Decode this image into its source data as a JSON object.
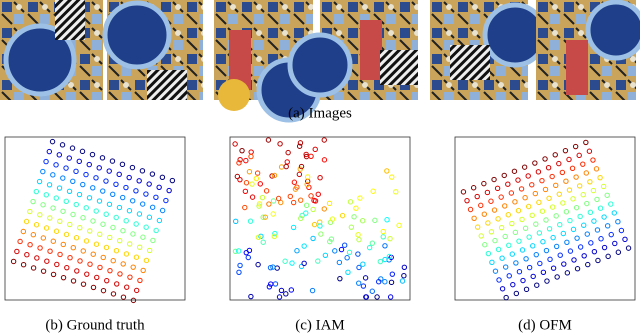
{
  "figure": {
    "images_caption": "(a) Images",
    "panels": [
      {
        "caption": "(b) Ground truth"
      },
      {
        "caption": "(c) IAM"
      },
      {
        "caption": "(d) OFM"
      }
    ]
  }
}
